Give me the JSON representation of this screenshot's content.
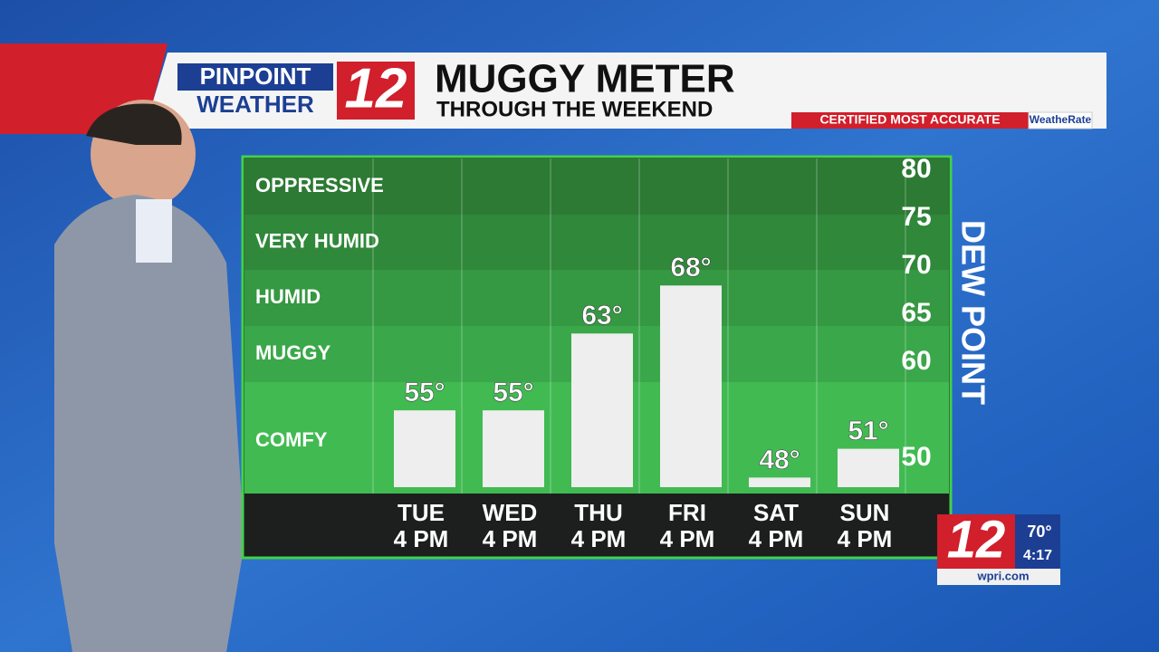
{
  "header": {
    "brand_top": "PINPOINT",
    "brand_bottom": "WEATHER",
    "channel": "12",
    "title": "MUGGY METER",
    "subtitle": "THROUGH THE WEEKEND",
    "badge": "CERTIFIED MOST ACCURATE",
    "badge_partner": "WeatheRate"
  },
  "chart_data": {
    "type": "bar",
    "y_label": "DEW POINT",
    "comfort_levels": [
      "OPPRESSIVE",
      "VERY HUMID",
      "HUMID",
      "MUGGY",
      "COMFY"
    ],
    "categories": [
      "TUE",
      "WED",
      "THU",
      "FRI",
      "SAT",
      "SUN"
    ],
    "times": [
      "4 PM",
      "4 PM",
      "4 PM",
      "4 PM",
      "4 PM",
      "4 PM"
    ],
    "values": [
      55,
      55,
      63,
      68,
      48,
      51
    ],
    "value_labels": [
      "55°",
      "55°",
      "63°",
      "68°",
      "48°",
      "51°"
    ],
    "color": "#eeeeee",
    "ylim": [
      47,
      80
    ],
    "yticks": [
      50,
      60,
      65,
      70,
      75,
      80
    ]
  },
  "bug": {
    "channel": "12",
    "temperature": "70°",
    "time": "4:17",
    "site": "wpri.com"
  }
}
